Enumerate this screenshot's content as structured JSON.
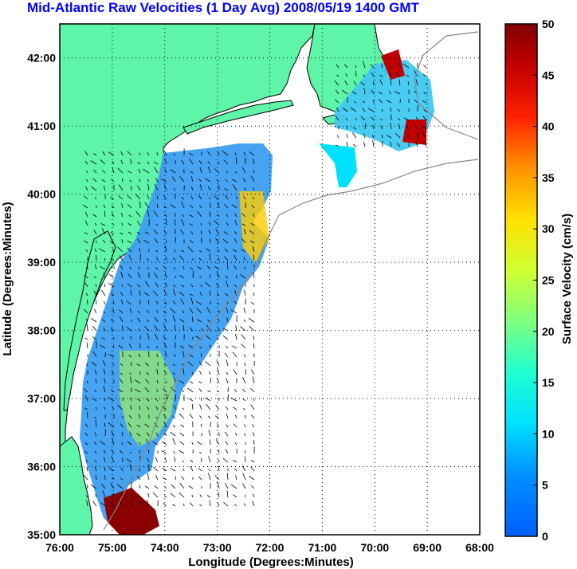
{
  "title": "Mid-Atlantic Raw Velocities (1 Day Avg) 2008/05/19 1400 GMT",
  "map": {
    "xlabel": "Longitude (Degrees:Minutes)",
    "ylabel": "Latitude (Degrees:Minutes)",
    "lon_range": [
      -76,
      -68
    ],
    "lat_range": [
      35,
      42.5
    ],
    "lon_ticks": [
      "76:00",
      "75:00",
      "74:00",
      "73:00",
      "72:00",
      "71:00",
      "70:00",
      "69:00",
      "68:00"
    ],
    "lat_ticks": [
      "35:00",
      "36:00",
      "37:00",
      "38:00",
      "39:00",
      "40:00",
      "41:00",
      "42:00"
    ],
    "grid": "dotted",
    "land_color": "#5ef5a8",
    "ocean_color": "#ffffff"
  },
  "colorbar": {
    "label": "Surface Velocity (cm/s)",
    "min": 0,
    "max": 50,
    "ticks": [
      "0",
      "5",
      "10",
      "15",
      "20",
      "25",
      "30",
      "35",
      "40",
      "45",
      "50"
    ],
    "colormap": "jet"
  }
}
